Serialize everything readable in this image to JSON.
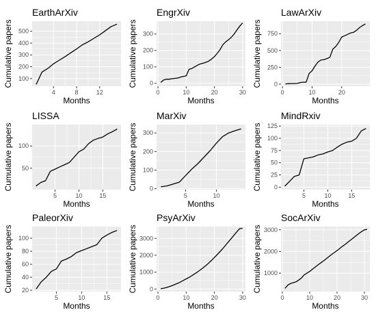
{
  "colors": {
    "panel_bg": "#ebebeb",
    "grid": "#ffffff",
    "line": "#000000",
    "tick_text": "#4d4d4d",
    "title_text": "#000000"
  },
  "chart_data": [
    {
      "type": "line",
      "title": "EarthArXiv",
      "xlabel": "Months",
      "ylabel": "Cumulative papers",
      "xlim": [
        0.3,
        15.7
      ],
      "ylim": [
        35,
        585
      ],
      "xticks": [
        4,
        8,
        12
      ],
      "yticks": [
        100,
        200,
        300,
        400,
        500
      ],
      "x": [
        1,
        2,
        3,
        4,
        5,
        6,
        7,
        8,
        9,
        10,
        11,
        12,
        13,
        14,
        15
      ],
      "values": [
        50,
        155,
        185,
        225,
        255,
        285,
        318,
        350,
        385,
        410,
        440,
        470,
        505,
        540,
        560
      ]
    },
    {
      "type": "line",
      "title": "EngrXiv",
      "xlabel": "Months",
      "ylabel": "Cumulative papers",
      "xlim": [
        -0.5,
        31
      ],
      "ylim": [
        -18,
        378
      ],
      "xticks": [
        0,
        10,
        20,
        30
      ],
      "yticks": [
        0,
        100,
        200,
        300
      ],
      "x": [
        1,
        2,
        3,
        4,
        5,
        6,
        7,
        8,
        9,
        10,
        11,
        12,
        13,
        14,
        15,
        16,
        17,
        18,
        19,
        20,
        21,
        22,
        23,
        24,
        25,
        26,
        27,
        28,
        29,
        30
      ],
      "values": [
        5,
        20,
        25,
        25,
        28,
        30,
        32,
        38,
        42,
        45,
        85,
        90,
        100,
        110,
        118,
        122,
        128,
        135,
        148,
        162,
        182,
        205,
        235,
        252,
        265,
        280,
        300,
        325,
        348,
        368
      ]
    },
    {
      "type": "line",
      "title": "LawArXiv",
      "xlabel": "Months",
      "ylabel": "Cumulative papers",
      "xlim": [
        -0.5,
        29.5
      ],
      "ylim": [
        -30,
        935
      ],
      "xticks": [
        0,
        10,
        20
      ],
      "yticks": [
        0,
        250,
        500,
        750
      ],
      "x": [
        1,
        2,
        3,
        4,
        5,
        6,
        7,
        8,
        9,
        10,
        11,
        12,
        13,
        14,
        15,
        16,
        17,
        18,
        19,
        20,
        21,
        22,
        23,
        24,
        25,
        26,
        27,
        28
      ],
      "values": [
        5,
        8,
        10,
        10,
        12,
        25,
        30,
        30,
        160,
        200,
        270,
        330,
        360,
        365,
        380,
        400,
        520,
        560,
        620,
        700,
        720,
        740,
        760,
        770,
        800,
        840,
        870,
        895
      ]
    },
    {
      "type": "line",
      "title": "LISSA",
      "xlabel": "Months",
      "ylabel": "Cumulative papers",
      "xlim": [
        0.2,
        18.8
      ],
      "ylim": [
        2,
        148
      ],
      "xticks": [
        5,
        10,
        15
      ],
      "yticks": [
        50,
        100
      ],
      "x": [
        1,
        2,
        3,
        4,
        5,
        6,
        7,
        8,
        9,
        10,
        11,
        12,
        13,
        14,
        15,
        16,
        17,
        18
      ],
      "values": [
        10,
        18,
        22,
        43,
        48,
        53,
        58,
        63,
        75,
        87,
        93,
        105,
        113,
        117,
        120,
        127,
        132,
        138
      ]
    },
    {
      "type": "line",
      "title": "MarXiv",
      "xlabel": "Months",
      "ylabel": "Cumulative papers",
      "xlim": [
        0.3,
        14.7
      ],
      "ylim": [
        -5,
        345
      ],
      "xticks": [
        5,
        10
      ],
      "yticks": [
        0,
        100,
        200,
        300
      ],
      "x": [
        1,
        2,
        3,
        4,
        5,
        6,
        7,
        8,
        9,
        10,
        11,
        12,
        13,
        14
      ],
      "values": [
        10,
        15,
        25,
        35,
        70,
        105,
        135,
        170,
        205,
        245,
        280,
        300,
        312,
        322
      ]
    },
    {
      "type": "line",
      "title": "MindRxiv",
      "xlabel": "Months",
      "ylabel": "Cumulative papers",
      "xlim": [
        0.2,
        18.8
      ],
      "ylim": [
        -5,
        128
      ],
      "xticks": [
        5,
        10,
        15
      ],
      "yticks": [
        0,
        25,
        50,
        75,
        100,
        125
      ],
      "x": [
        1,
        2,
        3,
        4,
        5,
        6,
        7,
        8,
        9,
        10,
        11,
        12,
        13,
        14,
        15,
        16,
        17,
        18
      ],
      "values": [
        2,
        12,
        22,
        25,
        58,
        60,
        62,
        66,
        68,
        72,
        75,
        82,
        88,
        92,
        94,
        100,
        115,
        120
      ]
    },
    {
      "type": "line",
      "title": "PaleorXiv",
      "xlabel": "Months",
      "ylabel": "Cumulative papers",
      "xlim": [
        0.2,
        17.8
      ],
      "ylim": [
        18,
        118
      ],
      "xticks": [
        5,
        10,
        15
      ],
      "yticks": [
        20,
        40,
        60,
        80,
        100
      ],
      "x": [
        1,
        2,
        3,
        4,
        5,
        6,
        7,
        8,
        9,
        10,
        11,
        12,
        13,
        14,
        15,
        16,
        17
      ],
      "values": [
        22,
        33,
        40,
        49,
        53,
        65,
        68,
        72,
        78,
        81,
        84,
        87,
        90,
        100,
        105,
        109,
        112
      ]
    },
    {
      "type": "line",
      "title": "PsyArXiv",
      "xlabel": "Months",
      "ylabel": "Cumulative papers",
      "xlim": [
        -0.5,
        31
      ],
      "ylim": [
        -150,
        3700
      ],
      "xticks": [
        0,
        10,
        20,
        30
      ],
      "yticks": [
        0,
        1000,
        2000,
        3000
      ],
      "x": [
        1,
        2,
        3,
        4,
        5,
        6,
        7,
        8,
        9,
        10,
        11,
        12,
        13,
        14,
        15,
        16,
        17,
        18,
        19,
        20,
        21,
        22,
        23,
        24,
        25,
        26,
        27,
        28,
        29,
        30
      ],
      "values": [
        20,
        50,
        90,
        140,
        200,
        270,
        340,
        420,
        510,
        600,
        690,
        790,
        900,
        1010,
        1130,
        1260,
        1390,
        1540,
        1700,
        1870,
        2040,
        2220,
        2400,
        2600,
        2800,
        3000,
        3200,
        3400,
        3580,
        3600
      ]
    },
    {
      "type": "line",
      "title": "SocArXiv",
      "xlabel": "Months",
      "ylabel": "Cumulative papers",
      "xlim": [
        -0.5,
        32
      ],
      "ylim": [
        150,
        3150
      ],
      "xticks": [
        0,
        10,
        20,
        30
      ],
      "yticks": [
        1000,
        2000,
        3000
      ],
      "x": [
        1,
        2,
        3,
        4,
        5,
        6,
        7,
        8,
        9,
        10,
        11,
        12,
        13,
        14,
        15,
        16,
        17,
        18,
        19,
        20,
        21,
        22,
        23,
        24,
        25,
        26,
        27,
        28,
        29,
        30,
        31
      ],
      "values": [
        300,
        450,
        520,
        560,
        600,
        680,
        780,
        920,
        1000,
        1080,
        1180,
        1280,
        1380,
        1470,
        1560,
        1660,
        1760,
        1860,
        1950,
        2040,
        2140,
        2240,
        2330,
        2430,
        2530,
        2630,
        2730,
        2830,
        2920,
        3000,
        3020
      ]
    }
  ]
}
